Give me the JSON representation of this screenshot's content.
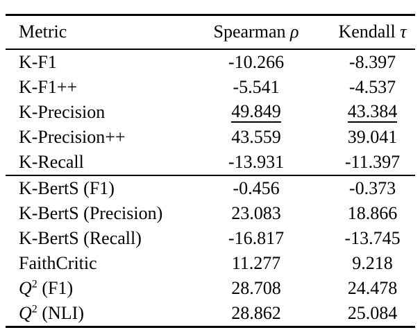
{
  "page": {
    "background_color": "#ffffff",
    "text_color": "#000000",
    "rule_color": "#000000"
  },
  "table": {
    "columns": [
      {
        "id": "metric",
        "align": "left",
        "parts": [
          {
            "t": "Metric"
          }
        ]
      },
      {
        "id": "spearman",
        "align": "center",
        "parts": [
          {
            "t": "Spearman "
          },
          {
            "t": "ρ",
            "s": "greek"
          }
        ]
      },
      {
        "id": "kendall",
        "align": "center",
        "parts": [
          {
            "t": "Kendall "
          },
          {
            "t": "τ",
            "s": "greek"
          }
        ]
      }
    ],
    "sections": [
      {
        "rows": [
          {
            "metric": [
              {
                "t": "K-F1"
              }
            ],
            "values": [
              {
                "t": "-10.266"
              },
              {
                "t": "-8.397"
              }
            ]
          },
          {
            "metric": [
              {
                "t": "K-F1++"
              }
            ],
            "values": [
              {
                "t": "-5.541"
              },
              {
                "t": "-4.537"
              }
            ]
          },
          {
            "metric": [
              {
                "t": "K-Precision"
              }
            ],
            "values": [
              {
                "t": "49.849",
                "underline": true
              },
              {
                "t": "43.384",
                "underline": true
              }
            ]
          },
          {
            "metric": [
              {
                "t": "K-Precision++"
              }
            ],
            "values": [
              {
                "t": "43.559"
              },
              {
                "t": "39.041"
              }
            ]
          },
          {
            "metric": [
              {
                "t": "K-Recall"
              }
            ],
            "values": [
              {
                "t": "-13.931"
              },
              {
                "t": "-11.397"
              }
            ]
          }
        ]
      },
      {
        "rows": [
          {
            "metric": [
              {
                "t": "K-BertS (F1)"
              }
            ],
            "values": [
              {
                "t": "-0.456"
              },
              {
                "t": "-0.373"
              }
            ]
          },
          {
            "metric": [
              {
                "t": "K-BertS (Precision)"
              }
            ],
            "values": [
              {
                "t": "23.083"
              },
              {
                "t": "18.866"
              }
            ]
          },
          {
            "metric": [
              {
                "t": "K-BertS (Recall)"
              }
            ],
            "values": [
              {
                "t": "-16.817"
              },
              {
                "t": "-13.745"
              }
            ]
          },
          {
            "metric": [
              {
                "t": "FaithCritic"
              }
            ],
            "values": [
              {
                "t": "11.277"
              },
              {
                "t": "9.218"
              }
            ]
          },
          {
            "metric": [
              {
                "t": "Q",
                "s": "mathit"
              },
              {
                "t": "2",
                "s": "sup"
              },
              {
                "t": " (F1)"
              }
            ],
            "values": [
              {
                "t": "28.708"
              },
              {
                "t": "24.478"
              }
            ]
          },
          {
            "metric": [
              {
                "t": "Q",
                "s": "mathit"
              },
              {
                "t": "2",
                "s": "sup"
              },
              {
                "t": " (NLI)"
              }
            ],
            "values": [
              {
                "t": "28.862"
              },
              {
                "t": "25.084"
              }
            ]
          }
        ]
      }
    ]
  }
}
